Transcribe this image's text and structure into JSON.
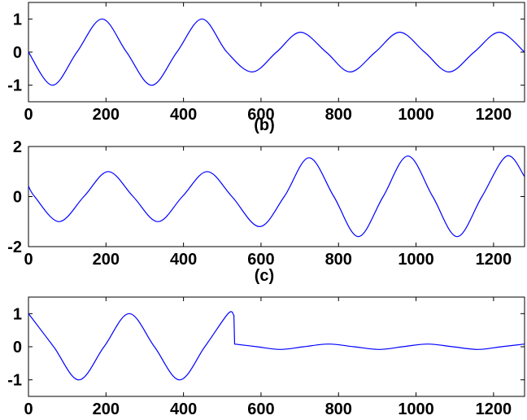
{
  "colors": {
    "line": "#0000ff",
    "axes": "#000000",
    "background": "#ffffff"
  },
  "chart_data": [
    {
      "type": "line",
      "panel_label": "",
      "xlim": [
        0,
        1280
      ],
      "ylim": [
        -1.5,
        1.5
      ],
      "xticks": [
        0,
        200,
        400,
        600,
        800,
        1000,
        1200
      ],
      "yticks": [
        -1,
        0,
        1
      ],
      "grid": false,
      "series": [
        {
          "x": [
            0,
            62,
            125,
            190,
            253,
            318,
            383,
            448,
            512,
            577,
            640,
            702,
            768,
            830,
            895,
            958,
            1022,
            1085,
            1150,
            1215,
            1280
          ],
          "y": [
            0,
            -1.0,
            0,
            1.0,
            0,
            -1.0,
            0,
            1.0,
            0,
            -0.6,
            0,
            0.6,
            0,
            -0.6,
            0,
            0.6,
            0,
            -0.6,
            0,
            0.6,
            0
          ]
        }
      ]
    },
    {
      "type": "line",
      "panel_label": "(b)",
      "xlim": [
        0,
        1280
      ],
      "ylim": [
        -2,
        2
      ],
      "xticks": [
        0,
        200,
        400,
        600,
        800,
        1000,
        1200
      ],
      "yticks": [
        -2,
        0,
        2
      ],
      "grid": false,
      "series": [
        {
          "x": [
            0,
            16,
            79,
            143,
            206,
            270,
            334,
            397,
            461,
            525,
            596,
            660,
            724,
            788,
            851,
            915,
            979,
            1043,
            1106,
            1170,
            1234,
            1280
          ],
          "y": [
            0.42,
            0,
            -1.0,
            0,
            1.0,
            0,
            -1.0,
            0,
            1.0,
            0,
            -1.2,
            0,
            1.55,
            0,
            -1.6,
            0,
            1.62,
            0,
            -1.6,
            0,
            1.62,
            0.8
          ]
        }
      ]
    },
    {
      "type": "line",
      "panel_label": "(c)",
      "xlim": [
        0,
        1280
      ],
      "ylim": [
        -1.5,
        1.5
      ],
      "xticks": [
        0,
        200,
        400,
        600,
        800,
        1000,
        1200
      ],
      "yticks": [
        -1,
        0,
        1
      ],
      "grid": false,
      "series": [
        {
          "x": [
            0,
            65,
            130,
            195,
            260,
            325,
            390,
            455,
            515,
            530,
            532,
            590,
            650,
            710,
            775,
            840,
            905,
            965,
            1030,
            1095,
            1160,
            1220,
            1280
          ],
          "y": [
            1.0,
            0,
            -1.0,
            0,
            1.0,
            0,
            -1.0,
            0,
            1.0,
            0.95,
            0.08,
            0,
            -0.08,
            0,
            0.08,
            0,
            -0.08,
            0,
            0.08,
            0,
            -0.08,
            0,
            0.08
          ]
        }
      ]
    }
  ]
}
